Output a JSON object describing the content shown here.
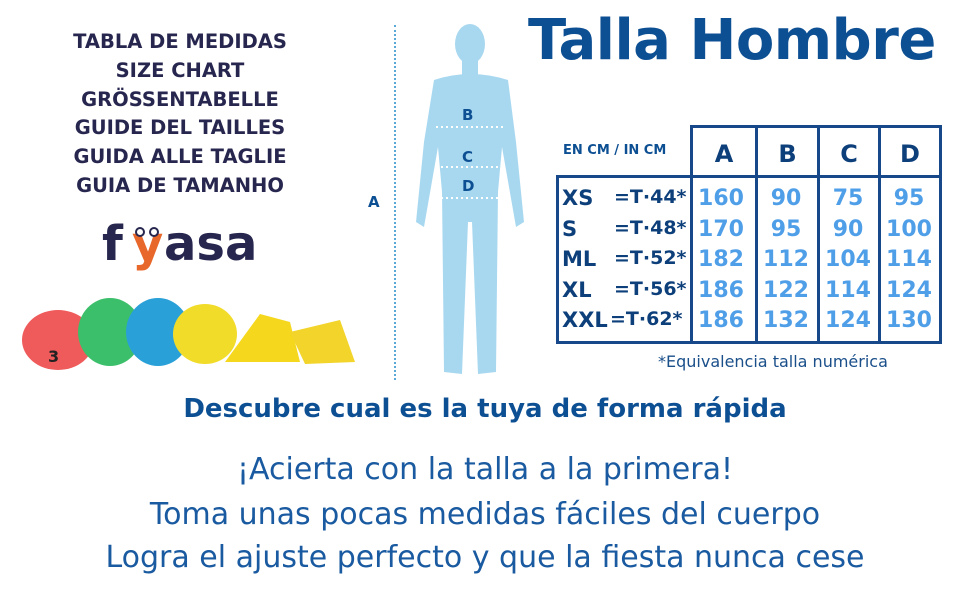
{
  "left_titles": [
    "TABLA DE MEDIDAS",
    "SIZE CHART",
    "GRÖSSENTABELLE",
    "GUIDE DEL TAILLES",
    "GUIDA ALLE TAGLIE",
    "GUIA DE TAMANHO"
  ],
  "logo": {
    "text": "fyasa",
    "colors": {
      "main": "#27264f",
      "accent": "#e8672a"
    }
  },
  "figure_labels": {
    "a": "A",
    "b": "B",
    "c": "C",
    "d": "D"
  },
  "title": "Talla Hombre",
  "table": {
    "unit_label": "EN CM / IN CM",
    "columns": [
      "A",
      "B",
      "C",
      "D"
    ],
    "rows": [
      {
        "size": "XS",
        "equiv": "=T·44*",
        "values": [
          "160",
          "90",
          "75",
          "95"
        ]
      },
      {
        "size": "S",
        "equiv": "=T·48*",
        "values": [
          "170",
          "95",
          "90",
          "100"
        ]
      },
      {
        "size": "ML",
        "equiv": "=T·52*",
        "values": [
          "182",
          "112",
          "104",
          "114"
        ]
      },
      {
        "size": "XL",
        "equiv": "=T·56*",
        "values": [
          "186",
          "122",
          "114",
          "124"
        ]
      },
      {
        "size": "XXL",
        "equiv": "=T·62*",
        "values": [
          "186",
          "132",
          "124",
          "130"
        ]
      }
    ],
    "footnote": "*Equivalencia talla numérica"
  },
  "subtitle": "Descubre cual es la tuya de forma rápida",
  "taglines": [
    "¡Acierta con la talla a la primera!",
    "Toma unas pocas medidas fáciles del cuerpo",
    "Logra el ajuste perfecto y que la fiesta nunca cese"
  ],
  "colors": {
    "brand_blue": "#0d4f93",
    "value_blue": "#4f9ee8",
    "silhouette": "#a8d8f0"
  }
}
